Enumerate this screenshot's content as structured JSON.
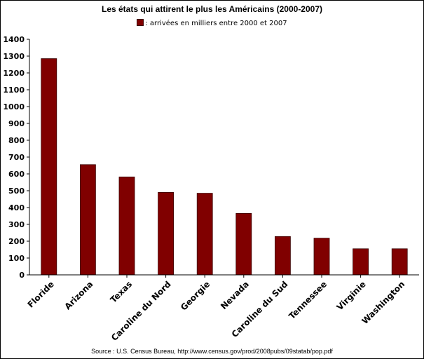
{
  "chart_data": {
    "type": "bar",
    "title": "Les états qui attirent le plus les Américains (2000-2007)",
    "categories": [
      "Floride",
      "Arizona",
      "Texas",
      "Caroline du Nord",
      "Georgie",
      "Nevada",
      "Caroline du Sud",
      "Tennessee",
      "Virginie",
      "Washington"
    ],
    "series": [
      {
        "name": ": arrivées en milliers entre 2000 et 2007",
        "values": [
          1285,
          655,
          582,
          490,
          485,
          365,
          228,
          218,
          155,
          155
        ]
      }
    ],
    "xlabel": "",
    "ylabel": "",
    "ylim": [
      0,
      1400
    ],
    "yticks": [
      0,
      100,
      200,
      300,
      400,
      500,
      600,
      700,
      800,
      900,
      1000,
      1100,
      1200,
      1300,
      1400
    ],
    "grid": false,
    "legend_position": "top-center",
    "bar_color": "#800000",
    "source": "Source : U.S. Census Bureau, http://www.census.gov/prod/2008pubs/09statab/pop.pdf"
  }
}
